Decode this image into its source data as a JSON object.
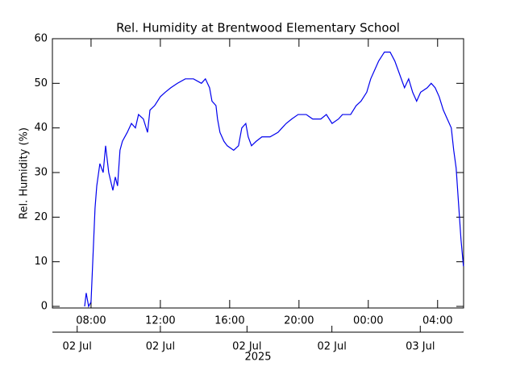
{
  "chart_data": {
    "type": "line",
    "title": "Rel. Humidity at Brentwood Elementary School",
    "ylabel": "Rel. Humidity (%)",
    "x": [
      7.63,
      7.72,
      7.86,
      8.0,
      8.23,
      8.33,
      8.51,
      8.7,
      8.84,
      9.02,
      9.26,
      9.4,
      9.53,
      9.67,
      9.81,
      10.09,
      10.33,
      10.56,
      10.74,
      11.02,
      11.26,
      11.4,
      11.67,
      12.0,
      12.28,
      12.6,
      12.98,
      13.44,
      13.91,
      14.37,
      14.6,
      14.84,
      14.98,
      15.21,
      15.3,
      15.44,
      15.67,
      15.86,
      16.23,
      16.51,
      16.7,
      16.93,
      17.07,
      17.26,
      17.53,
      17.86,
      18.33,
      18.79,
      19.02,
      19.26,
      19.58,
      19.95,
      20.42,
      20.79,
      21.26,
      21.58,
      21.91,
      22.28,
      22.51,
      22.98,
      23.3,
      23.58,
      23.91,
      24.14,
      24.37,
      24.6,
      24.93,
      25.26,
      25.53,
      25.81,
      26.09,
      26.33,
      26.56,
      26.79,
      27.02,
      27.4,
      27.63,
      27.86,
      28.09,
      28.33,
      28.56,
      28.79,
      28.93,
      29.07,
      29.21,
      29.35,
      29.49
    ],
    "series": [
      {
        "name": "Rel. Humidity",
        "color": "#0000ee",
        "values": [
          0,
          3,
          0,
          1,
          22,
          27,
          32,
          30,
          36,
          30,
          26,
          29,
          27,
          35,
          37,
          39,
          41,
          40,
          43,
          42,
          39,
          44,
          45,
          47,
          48,
          49,
          50,
          51,
          51,
          50,
          51,
          49,
          46,
          45,
          42,
          39,
          37,
          36,
          35,
          36,
          40,
          41,
          38,
          36,
          37,
          38,
          38,
          39,
          40,
          41,
          42,
          43,
          43,
          42,
          42,
          43,
          41,
          42,
          43,
          43,
          45,
          46,
          48,
          51,
          53,
          55,
          57,
          57,
          55,
          52,
          49,
          51,
          48,
          46,
          48,
          49,
          50,
          49,
          47,
          44,
          42,
          40,
          35,
          31,
          23,
          15,
          9
        ]
      }
    ],
    "xlim": [
      5.77,
      29.5
    ],
    "xticks": [
      {
        "value": 8,
        "label": "08:00"
      },
      {
        "value": 12,
        "label": "12:00"
      },
      {
        "value": 16,
        "label": "16:00"
      },
      {
        "value": 20,
        "label": "20:00"
      },
      {
        "value": 24,
        "label": "00:00"
      },
      {
        "value": 28,
        "label": "04:00"
      }
    ],
    "x2ticks": [
      {
        "value": 7.2,
        "label": "02 Jul"
      },
      {
        "value": 12,
        "label": "02 Jul"
      },
      {
        "value": 17.0,
        "label": "02 Jul"
      },
      {
        "value": 21.9,
        "label": "02 Jul"
      },
      {
        "value": 27.0,
        "label": "03 Jul"
      }
    ],
    "x2label": "2025",
    "ylim": [
      0,
      60
    ],
    "yticks": [
      0,
      10,
      20,
      30,
      40,
      50,
      60
    ]
  }
}
